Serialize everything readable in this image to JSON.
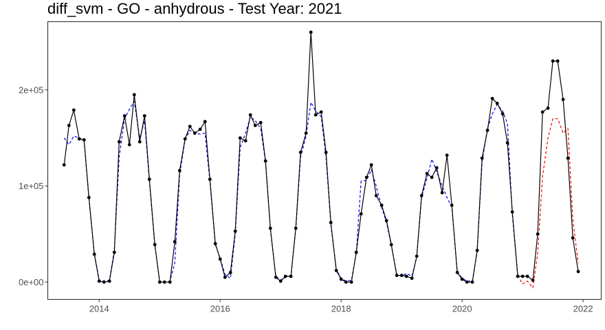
{
  "chart_data": {
    "type": "line",
    "title": "diff_svm - GO - anhydrous - Test Year: 2021",
    "xlabel": "",
    "ylabel": "",
    "xlim": [
      2013.15,
      2022.3
    ],
    "ylim": [
      -18000,
      271000
    ],
    "x_ticks": [
      2014,
      2016,
      2018,
      2020,
      2022
    ],
    "x_tick_labels": [
      "2014",
      "2016",
      "2018",
      "2020",
      "2022"
    ],
    "y_ticks": [
      0,
      100000,
      200000
    ],
    "y_tick_labels": [
      "0e+00",
      "1e+05",
      "2e+05"
    ],
    "grid": false,
    "legend": "none",
    "colors": {
      "actual": "#000000",
      "fitted": "#0000ff",
      "forecast": "#ff0000"
    },
    "series": [
      {
        "role": "actual",
        "style": "solid-line-with-points",
        "x": [
          2013.42,
          2013.5,
          2013.58,
          2013.67,
          2013.75,
          2013.83,
          2013.92,
          2014.0,
          2014.08,
          2014.17,
          2014.25,
          2014.33,
          2014.42,
          2014.5,
          2014.58,
          2014.67,
          2014.75,
          2014.83,
          2014.92,
          2015.0,
          2015.08,
          2015.17,
          2015.25,
          2015.33,
          2015.42,
          2015.5,
          2015.58,
          2015.67,
          2015.75,
          2015.83,
          2015.92,
          2016.0,
          2016.08,
          2016.17,
          2016.25,
          2016.33,
          2016.42,
          2016.5,
          2016.58,
          2016.67,
          2016.75,
          2016.83,
          2016.92,
          2017.0,
          2017.08,
          2017.17,
          2017.25,
          2017.33,
          2017.42,
          2017.5,
          2017.58,
          2017.67,
          2017.75,
          2017.83,
          2017.92,
          2018.0,
          2018.08,
          2018.17,
          2018.25,
          2018.33,
          2018.42,
          2018.5,
          2018.58,
          2018.67,
          2018.75,
          2018.83,
          2018.92,
          2019.0,
          2019.08,
          2019.17,
          2019.25,
          2019.33,
          2019.42,
          2019.5,
          2019.58,
          2019.67,
          2019.75,
          2019.83,
          2019.92,
          2020.0,
          2020.08,
          2020.17,
          2020.25,
          2020.33,
          2020.42,
          2020.5,
          2020.58,
          2020.67,
          2020.75,
          2020.83,
          2020.92,
          2021.0,
          2021.08,
          2021.17,
          2021.25,
          2021.33,
          2021.42,
          2021.5,
          2021.58,
          2021.67,
          2021.75,
          2021.83,
          2021.92
        ],
        "y": [
          122000,
          163000,
          179000,
          149000,
          148000,
          88000,
          29000,
          1000,
          0,
          1000,
          31000,
          146000,
          173000,
          143000,
          195000,
          146000,
          173000,
          107000,
          39000,
          0,
          0,
          0,
          42000,
          116000,
          149000,
          162000,
          155000,
          159000,
          167000,
          107000,
          40000,
          24000,
          5000,
          10000,
          53000,
          150000,
          147000,
          174000,
          163000,
          166000,
          126000,
          56000,
          5000,
          1000,
          6000,
          6000,
          56000,
          135000,
          155000,
          260000,
          174000,
          177000,
          135000,
          62000,
          12000,
          3000,
          0,
          0,
          31000,
          71000,
          109000,
          122000,
          90000,
          80000,
          64000,
          39000,
          7000,
          7000,
          6000,
          4000,
          27000,
          90000,
          113000,
          109000,
          119000,
          93000,
          132000,
          80000,
          10000,
          3000,
          0,
          0,
          33000,
          129000,
          158000,
          191000,
          186000,
          175000,
          145000,
          73000,
          6000,
          6000,
          6000,
          2000,
          50000,
          177000,
          181000,
          230000,
          230000,
          190000,
          129000,
          46000,
          11000
        ]
      },
      {
        "role": "fitted",
        "style": "dashed",
        "x": [
          2013.42,
          2013.5,
          2013.58,
          2013.67,
          2013.75,
          2013.83,
          2013.92,
          2014.0,
          2014.08,
          2014.17,
          2014.25,
          2014.33,
          2014.42,
          2014.5,
          2014.58,
          2014.67,
          2014.75,
          2014.83,
          2014.92,
          2015.0,
          2015.08,
          2015.17,
          2015.25,
          2015.33,
          2015.42,
          2015.5,
          2015.58,
          2015.67,
          2015.75,
          2015.83,
          2015.92,
          2016.0,
          2016.08,
          2016.17,
          2016.25,
          2016.33,
          2016.42,
          2016.5,
          2016.58,
          2016.67,
          2016.75,
          2016.83,
          2016.92,
          2017.0,
          2017.08,
          2017.17,
          2017.25,
          2017.33,
          2017.42,
          2017.5,
          2017.58,
          2017.67,
          2017.75,
          2017.83,
          2017.92,
          2018.0,
          2018.08,
          2018.17,
          2018.25,
          2018.33,
          2018.42,
          2018.5,
          2018.58,
          2018.67,
          2018.75,
          2018.83,
          2018.92,
          2019.0,
          2019.08,
          2019.17,
          2019.25,
          2019.33,
          2019.42,
          2019.5,
          2019.58,
          2019.67,
          2019.75,
          2019.83,
          2019.92,
          2020.0,
          2020.08,
          2020.17,
          2020.25,
          2020.33,
          2020.42,
          2020.5,
          2020.58,
          2020.67,
          2020.75,
          2020.83,
          2020.92
        ],
        "y": [
          150000,
          143000,
          152000,
          150000,
          147000,
          88000,
          30000,
          2000,
          1000,
          2000,
          33000,
          130000,
          170000,
          180000,
          188000,
          150000,
          168000,
          105000,
          38000,
          1000,
          0,
          1000,
          20000,
          112000,
          148000,
          158000,
          155000,
          154000,
          155000,
          105000,
          39000,
          25000,
          8000,
          4000,
          50000,
          140000,
          155000,
          172000,
          168000,
          160000,
          125000,
          55000,
          6000,
          2000,
          5000,
          7000,
          55000,
          130000,
          152000,
          187000,
          178000,
          172000,
          130000,
          60000,
          13000,
          4000,
          1000,
          2000,
          30000,
          105000,
          106000,
          117000,
          100000,
          78000,
          62000,
          38000,
          8000,
          6000,
          9000,
          6000,
          26000,
          88000,
          108000,
          128000,
          115000,
          100000,
          88000,
          78000,
          11000,
          4000,
          1000,
          1000,
          32000,
          125000,
          160000,
          175000,
          185000,
          178000,
          165000,
          70000,
          7000
        ]
      },
      {
        "role": "forecast",
        "style": "dashed",
        "x": [
          2020.92,
          2021.0,
          2021.08,
          2021.17,
          2021.25,
          2021.33,
          2021.42,
          2021.5,
          2021.58,
          2021.67,
          2021.75,
          2021.83,
          2021.92
        ],
        "y": [
          7000,
          -2000,
          1000,
          -6000,
          30000,
          110000,
          150000,
          170000,
          170000,
          155000,
          160000,
          65000,
          20000
        ]
      }
    ]
  }
}
